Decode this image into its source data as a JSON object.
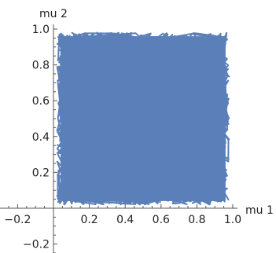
{
  "chart_data": {
    "type": "line",
    "title": "",
    "xlabel": "mu 1",
    "ylabel": "mu 2",
    "xlim": [
      -0.25,
      1.0
    ],
    "ylim": [
      -0.25,
      1.0
    ],
    "x_ticks": [
      {
        "value": -0.2,
        "label": "−0.2"
      },
      {
        "value": 0.2,
        "label": "0.2"
      },
      {
        "value": 0.4,
        "label": "0.4"
      },
      {
        "value": 0.6,
        "label": "0.6"
      },
      {
        "value": 0.8,
        "label": "0.8"
      },
      {
        "value": 1.0,
        "label": "1.0"
      }
    ],
    "y_ticks": [
      {
        "value": -0.2,
        "label": "−0.2"
      },
      {
        "value": 0.2,
        "label": "0.2"
      },
      {
        "value": 0.4,
        "label": "0.4"
      },
      {
        "value": 0.6,
        "label": "0.6"
      },
      {
        "value": 0.8,
        "label": "0.8"
      },
      {
        "value": 1.0,
        "label": "1.0"
      }
    ],
    "series": [
      {
        "color": "#5b7fb8",
        "x": [
          0.02,
          0.98
        ],
        "y": [
          0.02,
          0.98
        ],
        "description_range": "dense random walk filling unit square"
      }
    ],
    "grid": false
  }
}
